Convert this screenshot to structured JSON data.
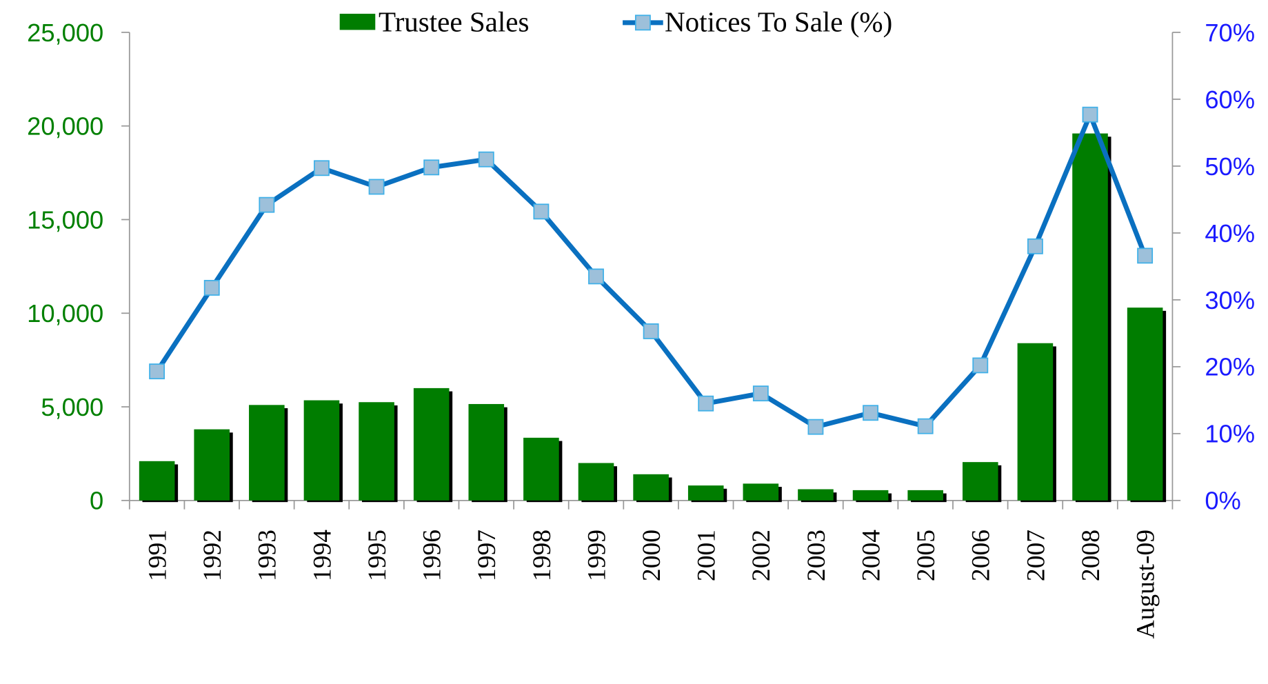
{
  "chart_data": {
    "type": "bar_line",
    "categories": [
      "1991",
      "1992",
      "1993",
      "1994",
      "1995",
      "1996",
      "1997",
      "1998",
      "1999",
      "2000",
      "2001",
      "2002",
      "2003",
      "2004",
      "2005",
      "2006",
      "2007",
      "2008",
      "August-09"
    ],
    "series": [
      {
        "name": "Trustee Sales",
        "type": "bar",
        "color": "#007d00",
        "axis": "y",
        "values": [
          2100,
          3800,
          5100,
          5350,
          5250,
          6000,
          5150,
          3350,
          2000,
          1400,
          800,
          900,
          600,
          550,
          550,
          2050,
          8400,
          19600,
          10300
        ]
      },
      {
        "name": "Notices To Sale (%)",
        "type": "line",
        "color": "#0a70c0",
        "marker_color": "#9dc0da",
        "axis": "y2",
        "values": [
          19.3,
          31.8,
          44.2,
          49.7,
          46.9,
          49.8,
          51.0,
          43.2,
          33.5,
          25.3,
          14.5,
          16.0,
          11.0,
          13.1,
          11.1,
          20.2,
          38.0,
          57.7,
          36.6
        ]
      }
    ],
    "ylim": [
      0,
      25000
    ],
    "yticks": [
      0,
      {
        "value": 5000,
        "label": "5,000"
      },
      {
        "value": 10000,
        "label": "10,000"
      },
      {
        "value": 15000,
        "label": "15,000"
      },
      {
        "value": 20000,
        "label": "20,000"
      },
      {
        "value": 25000,
        "label": "25,000"
      }
    ],
    "y2lim": [
      0,
      70
    ],
    "y2ticks": [
      {
        "value": 0,
        "label": "0%"
      },
      {
        "value": 10,
        "label": "10%"
      },
      {
        "value": 20,
        "label": "20%"
      },
      {
        "value": 30,
        "label": "30%"
      },
      {
        "value": 40,
        "label": "40%"
      },
      {
        "value": 50,
        "label": "50%"
      },
      {
        "value": 60,
        "label": "60%"
      },
      {
        "value": 70,
        "label": "70%"
      }
    ],
    "y_tick_color": "#008000",
    "y2_tick_color": "#1a1aff",
    "legend": "top",
    "grid": false
  }
}
